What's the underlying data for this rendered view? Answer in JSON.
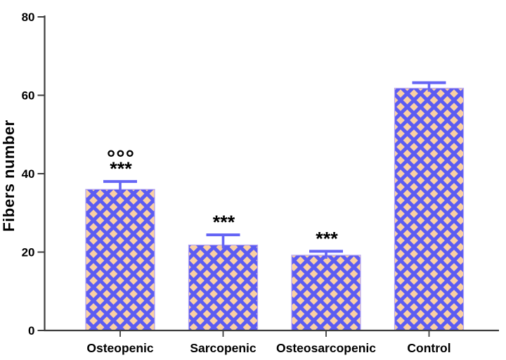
{
  "chart_data": {
    "type": "bar",
    "title": "",
    "ylabel": "Fibers number",
    "xlabel": "",
    "ylim": [
      0,
      80
    ],
    "yticks": [
      0,
      20,
      40,
      60,
      80
    ],
    "grid": false,
    "legend": null,
    "categories": [
      "Osteopenic",
      "Sarcopenic",
      "Osteosarcopenic",
      "Control"
    ],
    "values": [
      36,
      21.8,
      19.2,
      61.8
    ],
    "error_upper": [
      38,
      24.4,
      20.2,
      63.2
    ],
    "annotations": [
      [
        "°°°",
        "***"
      ],
      [
        "***"
      ],
      [
        "***"
      ],
      []
    ],
    "colors": {
      "bar_fill": "#5c5cf2",
      "pattern_diamond": "#fbd0a2",
      "bar_border": "#b3a4f2",
      "error_bar": "#6565f5",
      "axis": "#3d3d3d",
      "text": "#000000"
    }
  }
}
